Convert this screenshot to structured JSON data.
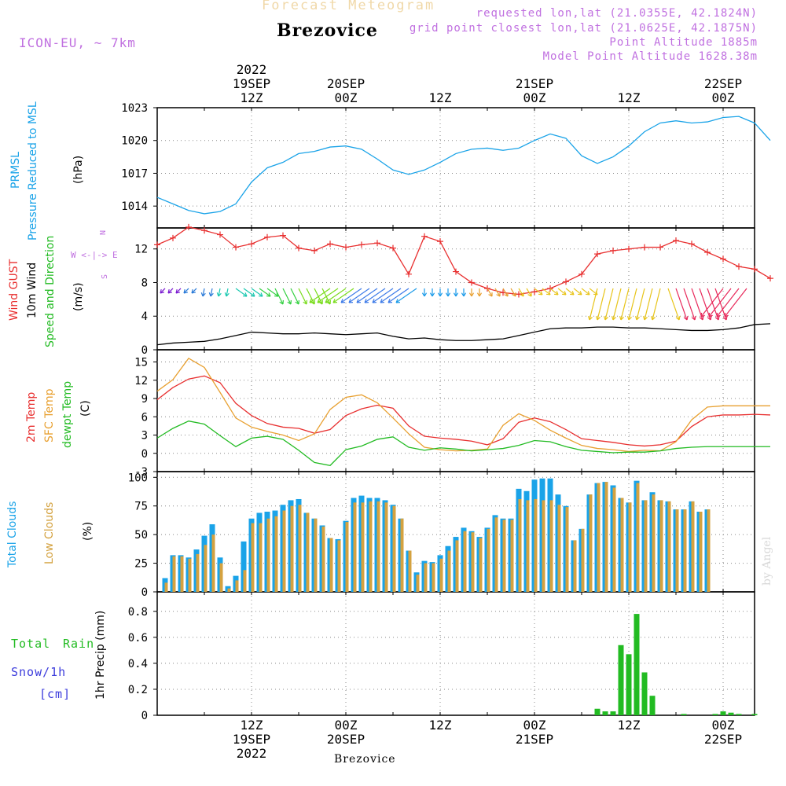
{
  "header": {
    "supertitle": "Forecast Meteogram",
    "station": "Brezovice",
    "model": "ICON-EU, ~ 7km",
    "requested": "requested lon,lat (21.0355E, 42.1824N)",
    "gridpoint": "grid point closest lon,lat (21.0625E, 42.1875N)",
    "point_alt": "Point Altitude 1885m",
    "model_alt": "Model Point Altitude 1628.38m",
    "footer_station": "Brezovice",
    "watermark": "by Angel"
  },
  "time_axis": {
    "top": [
      {
        "hour": 12,
        "lines": [
          "2022",
          "19SEP",
          "12Z"
        ]
      },
      {
        "hour": 24,
        "lines": [
          "20SEP",
          "00Z"
        ]
      },
      {
        "hour": 36,
        "lines": [
          "12Z"
        ]
      },
      {
        "hour": 48,
        "lines": [
          "21SEP",
          "00Z"
        ]
      },
      {
        "hour": 60,
        "lines": [
          "12Z"
        ]
      },
      {
        "hour": 72,
        "lines": [
          "22SEP",
          "00Z"
        ]
      }
    ],
    "bottom": [
      {
        "hour": 12,
        "lines": [
          "12Z",
          "19SEP",
          "2022"
        ]
      },
      {
        "hour": 24,
        "lines": [
          "00Z",
          "20SEP"
        ]
      },
      {
        "hour": 36,
        "lines": [
          "12Z"
        ]
      },
      {
        "hour": 48,
        "lines": [
          "00Z",
          "21SEP"
        ]
      },
      {
        "hour": 60,
        "lines": [
          "12Z"
        ]
      },
      {
        "hour": 72,
        "lines": [
          "00Z",
          "22SEP"
        ]
      }
    ]
  },
  "panel_labels": {
    "pressure": [
      {
        "text": "PRMSL",
        "color": "#1aa3e8"
      },
      {
        "text": "Pressure Reduced to MSL",
        "color": "#1aa3e8"
      },
      {
        "text": "(hPa)",
        "color": "#000000"
      }
    ],
    "wind": [
      {
        "text": "Wind GUST",
        "color": "#e83030"
      },
      {
        "text": "10m Wind",
        "color": "#000000"
      },
      {
        "text": "Speed and Direction",
        "color": "#22bb22"
      },
      {
        "text": "(m/s)",
        "color": "#000000"
      }
    ],
    "temp": [
      {
        "text": "2m Temp",
        "color": "#e83030"
      },
      {
        "text": "SFC Temp",
        "color": "#e8a030"
      },
      {
        "text": "dewpt Temp",
        "color": "#22bb22"
      },
      {
        "text": "(C)",
        "color": "#000000"
      }
    ],
    "clouds": [
      {
        "text": "Total Clouds",
        "color": "#1aa3e8"
      },
      {
        "text": "Low Clouds",
        "color": "#d4a240"
      },
      {
        "text": "(%)",
        "color": "#000000"
      }
    ],
    "precip": [
      {
        "text": "Total",
        "color": "#22bb22"
      },
      {
        "text": "Rain",
        "color": "#22bb22"
      },
      {
        "text": "Snow/1h",
        "color": "#3c3cdc"
      },
      {
        "text": "[cm]",
        "color": "#3c3cdc"
      },
      {
        "text": "1hr Precip (mm)",
        "color": "#000000"
      }
    ],
    "compass": {
      "line1": "N",
      "line2": "W <-|-> E",
      "line3": "S"
    }
  },
  "chart_data": [
    {
      "type": "line",
      "title": "Pressure Reduced to MSL",
      "ylabel": "(hPa)",
      "ylim": [
        1012.0,
        1023.0
      ],
      "yticks": [
        1014,
        1017,
        1020,
        1023
      ],
      "x_start_hour": 0,
      "x_step_hours": 2,
      "series": [
        {
          "name": "PRMSL",
          "color": "#1aa3e8",
          "values": [
            1014.8,
            1014.2,
            1013.6,
            1013.3,
            1013.5,
            1014.2,
            1016.2,
            1017.5,
            1018.0,
            1018.8,
            1019.0,
            1019.4,
            1019.5,
            1019.2,
            1018.3,
            1017.3,
            1016.9,
            1017.3,
            1018.0,
            1018.8,
            1019.2,
            1019.3,
            1019.1,
            1019.3,
            1020.0,
            1020.6,
            1020.2,
            1018.6,
            1017.9,
            1018.5,
            1019.5,
            1020.8,
            1021.6,
            1021.8,
            1021.6,
            1021.7,
            1022.1,
            1022.2,
            1021.6,
            1020.0
          ]
        }
      ]
    },
    {
      "type": "line",
      "title": "Wind GUST / 10m Wind Speed and Direction",
      "ylabel": "(m/s)",
      "ylim": [
        0,
        14.5
      ],
      "yticks": [
        0,
        4,
        8,
        12
      ],
      "x_start_hour": 0,
      "x_step_hours": 2,
      "series": [
        {
          "name": "Wind GUST",
          "color": "#e83030",
          "values": [
            12.5,
            13.3,
            14.6,
            14.2,
            13.7,
            12.2,
            12.6,
            13.4,
            13.6,
            12.1,
            11.8,
            12.6,
            12.2,
            12.5,
            12.7,
            12.1,
            9.0,
            13.5,
            12.9,
            9.3,
            8.0,
            7.3,
            6.8,
            6.6,
            6.9,
            7.3,
            8.1,
            9.0,
            11.4,
            11.8,
            12.0,
            12.2,
            12.2,
            13.0,
            12.6,
            11.6,
            10.8,
            9.9,
            9.6,
            8.5
          ]
        },
        {
          "name": "10m Wind",
          "color": "#000000",
          "values": [
            0.6,
            0.8,
            0.9,
            1.0,
            1.3,
            1.7,
            2.1,
            2.0,
            1.9,
            1.9,
            2.0,
            1.9,
            1.8,
            1.9,
            2.0,
            1.6,
            1.3,
            1.4,
            1.2,
            1.1,
            1.1,
            1.2,
            1.3,
            1.7,
            2.1,
            2.5,
            2.6,
            2.6,
            2.7,
            2.7,
            2.6,
            2.6,
            2.5,
            2.4,
            2.3,
            2.3,
            2.4,
            2.6,
            3.0,
            3.1
          ]
        }
      ]
    },
    {
      "type": "line",
      "title": "2m Temp / SFC Temp / dewpt Temp",
      "ylabel": "(C)",
      "ylim": [
        -3,
        17
      ],
      "yticks": [
        -3,
        0,
        3,
        6,
        9,
        12,
        15
      ],
      "x_start_hour": 0,
      "x_step_hours": 2,
      "series": [
        {
          "name": "2m Temp",
          "color": "#e83030",
          "values": [
            8.8,
            10.8,
            12.2,
            12.7,
            11.6,
            8.2,
            6.2,
            4.9,
            4.3,
            4.1,
            3.3,
            3.9,
            6.2,
            7.3,
            7.9,
            7.4,
            4.5,
            2.8,
            2.5,
            2.3,
            2.0,
            1.4,
            2.4,
            5.1,
            5.8,
            5.2,
            3.9,
            2.4,
            2.1,
            1.8,
            1.4,
            1.2,
            1.4,
            2.0,
            4.4,
            6.0,
            6.3,
            6.3,
            6.4,
            6.3
          ]
        },
        {
          "name": "SFC Temp",
          "color": "#e8a030",
          "values": [
            10.2,
            12.1,
            15.6,
            14.1,
            10.0,
            5.8,
            4.3,
            3.6,
            3.0,
            2.1,
            3.2,
            7.2,
            9.2,
            9.6,
            8.3,
            5.8,
            3.2,
            1.0,
            0.6,
            0.4,
            0.5,
            0.7,
            4.6,
            6.5,
            5.4,
            3.8,
            2.5,
            1.3,
            0.8,
            0.6,
            0.3,
            0.5,
            0.4,
            1.9,
            5.5,
            7.6,
            7.8,
            7.8,
            7.8,
            7.8
          ]
        },
        {
          "name": "dewpt Temp",
          "color": "#22bb22",
          "values": [
            2.5,
            4.1,
            5.3,
            4.8,
            2.9,
            1.1,
            2.5,
            2.8,
            2.3,
            0.5,
            -1.5,
            -2.0,
            0.6,
            1.2,
            2.3,
            2.7,
            1.0,
            0.5,
            0.9,
            0.7,
            0.4,
            0.6,
            0.8,
            1.3,
            2.1,
            1.9,
            1.1,
            0.5,
            0.3,
            0.1,
            0.2,
            0.2,
            0.4,
            0.8,
            1.0,
            1.1,
            1.1,
            1.1,
            1.1,
            1.1
          ]
        }
      ]
    },
    {
      "type": "bar",
      "title": "Total Clouds / Low Clouds",
      "ylabel": "(%)",
      "ylim": [
        0,
        105
      ],
      "yticks": [
        0,
        25,
        50,
        75,
        100
      ],
      "x_start_hour": 1,
      "x_step_hours": 1,
      "series": [
        {
          "name": "Total Clouds",
          "color": "#1aa3e8",
          "values": [
            12,
            32,
            32,
            30,
            37,
            49,
            59,
            30,
            5,
            14,
            44,
            64,
            69,
            70,
            71,
            76,
            80,
            81,
            69,
            64,
            58,
            47,
            46,
            62,
            82,
            84,
            82,
            82,
            80,
            76,
            64,
            36,
            17,
            27,
            26,
            32,
            40,
            48,
            56,
            53,
            48,
            56,
            67,
            64,
            64,
            90,
            88,
            98,
            99,
            99,
            85,
            75,
            45,
            55,
            85,
            95,
            96,
            93,
            82,
            78,
            97,
            80,
            87,
            80,
            79,
            72,
            72,
            79,
            70,
            72
          ]
        },
        {
          "name": "Low Clouds",
          "color": "#d4a240",
          "values": [
            8,
            31,
            31,
            29,
            33,
            41,
            50,
            25,
            3,
            10,
            19,
            60,
            60,
            64,
            66,
            71,
            75,
            76,
            69,
            64,
            57,
            47,
            45,
            61,
            78,
            78,
            79,
            79,
            78,
            75,
            64,
            36,
            15,
            25,
            25,
            29,
            36,
            45,
            53,
            52,
            47,
            55,
            65,
            63,
            63,
            81,
            80,
            81,
            80,
            80,
            76,
            74,
            45,
            55,
            85,
            95,
            96,
            91,
            82,
            78,
            95,
            80,
            85,
            80,
            79,
            72,
            72,
            79,
            70,
            72
          ]
        }
      ]
    },
    {
      "type": "bar",
      "title": "Total Rain / Snow 1hr Precip",
      "ylabel": "1hr Precip (mm)",
      "ylim": [
        0,
        0.95
      ],
      "yticks": [
        0,
        0.2,
        0.4,
        0.6,
        0.8
      ],
      "x_start_hour": 56,
      "x_step_hours": 1,
      "series": [
        {
          "name": "Total Rain",
          "color": "#22bb22",
          "values": [
            0.05,
            0.03,
            0.03,
            0.54,
            0.47,
            0.78,
            0.33,
            0.15,
            0,
            0,
            0,
            0.01,
            0,
            0,
            0,
            0.01,
            0.03,
            0.02,
            0.01,
            0,
            0.01
          ]
        }
      ]
    }
  ]
}
